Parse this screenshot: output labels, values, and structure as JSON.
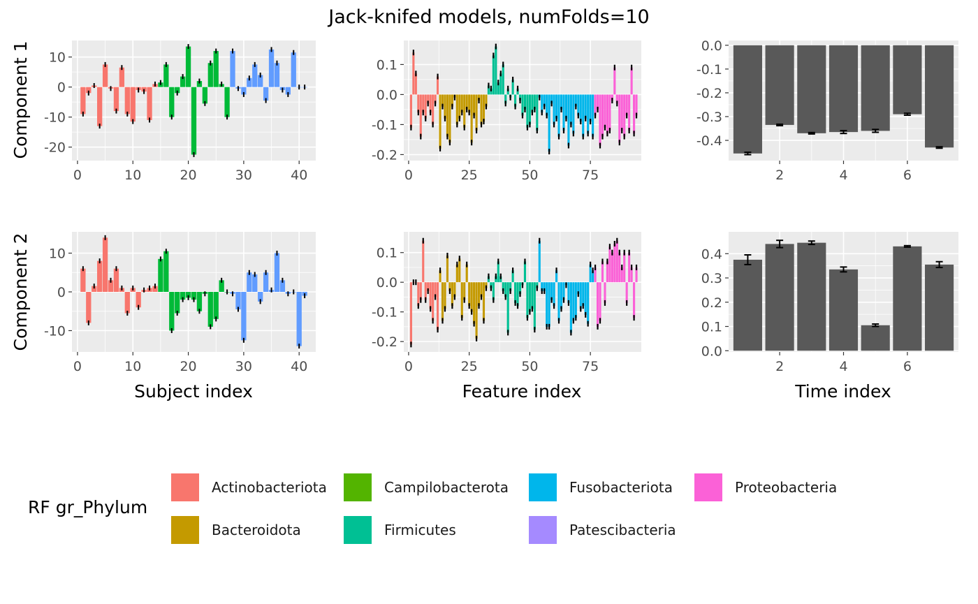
{
  "title": "Jack-knifed models, numFolds=10",
  "row_labels": [
    "Component 1",
    "Component 2"
  ],
  "col_xlabels": [
    "Subject index",
    "Feature index",
    "Time index"
  ],
  "legend": {
    "title": "RF gr_Phylum",
    "items": [
      {
        "label": "Actinobacteriota",
        "color": "#F8766D"
      },
      {
        "label": "Bacteroidota",
        "color": "#C49A00"
      },
      {
        "label": "Campilobacterota",
        "color": "#53B400"
      },
      {
        "label": "Firmicutes",
        "color": "#00C094"
      },
      {
        "label": "Fusobacteriota",
        "color": "#00B6EB"
      },
      {
        "label": "Patescibacteria",
        "color": "#A58AFF"
      },
      {
        "label": "Proteobacteria",
        "color": "#FB61D7"
      }
    ]
  },
  "chart_data": [
    {
      "type": "bar",
      "panel": "Component 1 / Subject index",
      "xlabel": "",
      "ylabel": "Component 1",
      "xlim": [
        -1,
        43
      ],
      "ylim": [
        -24.5,
        15.5
      ],
      "xticks": [
        0,
        10,
        20,
        30,
        40
      ],
      "yticks": [
        -20,
        -10,
        0,
        10
      ],
      "ytick_labels": [
        "-20",
        "-10",
        "0",
        "10"
      ],
      "x": [
        1,
        2,
        3,
        4,
        5,
        6,
        7,
        8,
        9,
        10,
        11,
        12,
        13,
        14,
        15,
        16,
        17,
        18,
        19,
        20,
        21,
        22,
        23,
        24,
        25,
        26,
        27,
        28,
        29,
        30,
        31,
        32,
        33,
        34,
        35,
        36,
        37,
        38,
        39,
        40,
        41
      ],
      "values": [
        -9,
        -2,
        0.5,
        -13,
        7.5,
        -0.5,
        -8,
        6.5,
        -9,
        -11.5,
        -1,
        -1.5,
        -11,
        1,
        1.5,
        7.5,
        -10,
        -2,
        3.5,
        13.5,
        -22.5,
        2,
        -5.5,
        8,
        12,
        1,
        -10,
        12,
        -0.5,
        -2.5,
        3,
        7.5,
        4,
        -4.5,
        12.5,
        8,
        -1,
        -2.5,
        11.5,
        0,
        0
      ],
      "group_colors": [
        "#F8766D",
        "#F8766D",
        "#F8766D",
        "#F8766D",
        "#F8766D",
        "#F8766D",
        "#F8766D",
        "#F8766D",
        "#F8766D",
        "#F8766D",
        "#F8766D",
        "#F8766D",
        "#F8766D",
        "#F8766D",
        "#00BA38",
        "#00BA38",
        "#00BA38",
        "#00BA38",
        "#00BA38",
        "#00BA38",
        "#00BA38",
        "#00BA38",
        "#00BA38",
        "#00BA38",
        "#00BA38",
        "#00BA38",
        "#00BA38",
        "#619CFF",
        "#619CFF",
        "#619CFF",
        "#619CFF",
        "#619CFF",
        "#619CFF",
        "#619CFF",
        "#619CFF",
        "#619CFF",
        "#619CFF",
        "#619CFF",
        "#619CFF",
        "#619CFF",
        "#619CFF"
      ]
    },
    {
      "type": "bar",
      "panel": "Component 1 / Feature index",
      "xlabel": "",
      "ylabel": "",
      "xlim": [
        -2,
        96
      ],
      "ylim": [
        -0.22,
        0.18
      ],
      "xticks": [
        0,
        25,
        50,
        75
      ],
      "yticks": [
        -0.2,
        -0.1,
        0.0,
        0.1
      ],
      "ytick_labels": [
        "-0.2",
        "-0.1",
        "0.0",
        "0.1"
      ],
      "values": [
        -0.11,
        0.14,
        0.07,
        -0.06,
        -0.14,
        -0.06,
        -0.08,
        -0.03,
        -0.06,
        -0.1,
        -0.03,
        0.06,
        -0.18,
        -0.04,
        -0.08,
        -0.14,
        -0.16,
        -0.04,
        -0.01,
        -0.1,
        -0.08,
        -0.06,
        -0.11,
        -0.05,
        -0.06,
        -0.16,
        -0.07,
        -0.12,
        -0.02,
        -0.1,
        -0.09,
        -0.04,
        0.03,
        0.02,
        0.13,
        0.16,
        0.04,
        0.07,
        0.1,
        -0.03,
        0.02,
        -0.01,
        0.05,
        -0.04,
        0.02,
        -0.02,
        -0.07,
        -0.05,
        -0.11,
        -0.1,
        -0.06,
        -0.05,
        -0.12,
        -0.01,
        -0.06,
        -0.04,
        -0.07,
        -0.19,
        -0.03,
        -0.1,
        -0.08,
        -0.14,
        -0.05,
        -0.12,
        -0.08,
        -0.17,
        -0.1,
        -0.13,
        -0.04,
        -0.07,
        -0.09,
        -0.14,
        -0.08,
        -0.13,
        -0.09,
        -0.14,
        -0.07,
        -0.05,
        -0.17,
        -0.14,
        -0.11,
        -0.13,
        -0.12,
        -0.02,
        0.09,
        -0.03,
        -0.16,
        -0.12,
        -0.14,
        -0.07,
        -0.12,
        0.09,
        -0.13,
        -0.07
      ],
      "group_sizes": [
        {
          "group": "Actinobacteriota",
          "count": 12
        },
        {
          "group": "Bacteroidota",
          "count": 20
        },
        {
          "group": "Campilobacterota",
          "count": 0
        },
        {
          "group": "Firmicutes",
          "count": 21
        },
        {
          "group": "Fusobacteriota",
          "count": 23
        },
        {
          "group": "Patescibacteria",
          "count": 0
        },
        {
          "group": "Proteobacteria",
          "count": 18
        }
      ]
    },
    {
      "type": "bar",
      "panel": "Component 1 / Time index",
      "xlabel": "",
      "ylabel": "",
      "xlim": [
        0.4,
        7.6
      ],
      "ylim": [
        -0.485,
        0.02
      ],
      "xticks": [
        2,
        4,
        6
      ],
      "yticks": [
        -0.4,
        -0.3,
        -0.2,
        -0.1,
        0.0
      ],
      "ytick_labels": [
        "-0.4",
        "-0.3",
        "-0.2",
        "-0.1",
        "0.0"
      ],
      "x": [
        1,
        2,
        3,
        4,
        5,
        6,
        7
      ],
      "values": [
        -0.455,
        -0.335,
        -0.37,
        -0.365,
        -0.36,
        -0.29,
        -0.43
      ],
      "errors": [
        0.005,
        0.003,
        0.003,
        0.006,
        0.006,
        0.004,
        0.003
      ],
      "bar_color": "#595959"
    },
    {
      "type": "bar",
      "panel": "Component 2 / Subject index",
      "xlabel": "Subject index",
      "ylabel": "Component 2",
      "xlim": [
        -1,
        43
      ],
      "ylim": [
        -15.5,
        15.5
      ],
      "xticks": [
        0,
        10,
        20,
        30,
        40
      ],
      "yticks": [
        -10,
        0,
        10
      ],
      "ytick_labels": [
        "-10",
        "0",
        "10"
      ],
      "x": [
        1,
        2,
        3,
        4,
        5,
        6,
        7,
        8,
        9,
        10,
        11,
        12,
        13,
        14,
        15,
        16,
        17,
        18,
        19,
        20,
        21,
        22,
        23,
        24,
        25,
        26,
        27,
        28,
        29,
        30,
        31,
        32,
        33,
        34,
        35,
        36,
        37,
        38,
        39,
        40,
        41
      ],
      "values": [
        6,
        -8,
        1.5,
        8,
        14,
        3,
        6,
        1,
        -5.5,
        1,
        -4,
        0.5,
        1,
        1.5,
        8.5,
        10.5,
        -10,
        -5.5,
        -2,
        -1.5,
        -2,
        -5,
        -0.5,
        -9,
        -7,
        3,
        0,
        -0.5,
        -4.5,
        -12.5,
        5,
        4.5,
        -2.5,
        5,
        0.5,
        10,
        3,
        -0.5,
        0,
        -14,
        -1
      ],
      "group_colors": [
        "#F8766D",
        "#F8766D",
        "#F8766D",
        "#F8766D",
        "#F8766D",
        "#F8766D",
        "#F8766D",
        "#F8766D",
        "#F8766D",
        "#F8766D",
        "#F8766D",
        "#F8766D",
        "#F8766D",
        "#F8766D",
        "#00BA38",
        "#00BA38",
        "#00BA38",
        "#00BA38",
        "#00BA38",
        "#00BA38",
        "#00BA38",
        "#00BA38",
        "#00BA38",
        "#00BA38",
        "#00BA38",
        "#00BA38",
        "#00BA38",
        "#619CFF",
        "#619CFF",
        "#619CFF",
        "#619CFF",
        "#619CFF",
        "#619CFF",
        "#619CFF",
        "#619CFF",
        "#619CFF",
        "#619CFF",
        "#619CFF",
        "#619CFF",
        "#619CFF",
        "#619CFF"
      ]
    },
    {
      "type": "bar",
      "panel": "Component 2 / Feature index",
      "xlabel": "Feature index",
      "ylabel": "",
      "xlim": [
        -2,
        96
      ],
      "ylim": [
        -0.235,
        0.17
      ],
      "xticks": [
        0,
        25,
        50,
        75
      ],
      "yticks": [
        -0.2,
        -0.1,
        0.0,
        0.1
      ],
      "ytick_labels": [
        "-0.2",
        "-0.1",
        "0.0",
        "0.1"
      ],
      "values": [
        -0.21,
        0.0,
        0.0,
        -0.08,
        -0.06,
        0.14,
        -0.06,
        -0.03,
        -0.09,
        -0.13,
        -0.05,
        -0.16,
        0.04,
        -0.13,
        -0.09,
        0.09,
        -0.03,
        -0.08,
        -0.05,
        0.06,
        0.08,
        -0.12,
        -0.06,
        0.06,
        -0.08,
        -0.1,
        -0.14,
        -0.19,
        -0.08,
        -0.05,
        -0.13,
        -0.02,
        0.02,
        -0.02,
        -0.06,
        0.02,
        0.07,
        0.02,
        -0.03,
        -0.05,
        -0.17,
        -0.03,
        0.04,
        -0.07,
        -0.08,
        -0.04,
        -0.01,
        0.07,
        -0.12,
        -0.1,
        -0.09,
        -0.16,
        -0.02,
        0.14,
        -0.03,
        -0.03,
        -0.15,
        -0.15,
        -0.06,
        -0.08,
        0.04,
        -0.13,
        -0.09,
        -0.06,
        -0.01,
        -0.07,
        -0.17,
        -0.13,
        -0.12,
        -0.04,
        -0.09,
        -0.08,
        -0.11,
        -0.14,
        0.06,
        0.04,
        0.05,
        -0.15,
        -0.13,
        0.07,
        -0.07,
        0.07,
        0.12,
        0.1,
        0.13,
        0.14,
        0.1,
        0.05,
        0.1,
        -0.07,
        0.1,
        0.05,
        -0.12,
        0.05
      ],
      "group_sizes": [
        {
          "group": "Actinobacteriota",
          "count": 12
        },
        {
          "group": "Bacteroidota",
          "count": 20
        },
        {
          "group": "Campilobacterota",
          "count": 0
        },
        {
          "group": "Firmicutes",
          "count": 21
        },
        {
          "group": "Fusobacteriota",
          "count": 23
        },
        {
          "group": "Patescibacteria",
          "count": 0
        },
        {
          "group": "Proteobacteria",
          "count": 18
        }
      ]
    },
    {
      "type": "bar",
      "panel": "Component 2 / Time index",
      "xlabel": "Time index",
      "ylabel": "",
      "xlim": [
        0.4,
        7.6
      ],
      "ylim": [
        -0.005,
        0.49
      ],
      "xticks": [
        2,
        4,
        6
      ],
      "yticks": [
        0.0,
        0.1,
        0.2,
        0.3,
        0.4
      ],
      "ytick_labels": [
        "0.0",
        "0.1",
        "0.2",
        "0.3",
        "0.4"
      ],
      "x": [
        1,
        2,
        3,
        4,
        5,
        6,
        7
      ],
      "values": [
        0.375,
        0.44,
        0.445,
        0.335,
        0.105,
        0.43,
        0.355
      ],
      "errors": [
        0.02,
        0.015,
        0.007,
        0.01,
        0.005,
        0.003,
        0.012
      ],
      "bar_color": "#595959"
    }
  ]
}
